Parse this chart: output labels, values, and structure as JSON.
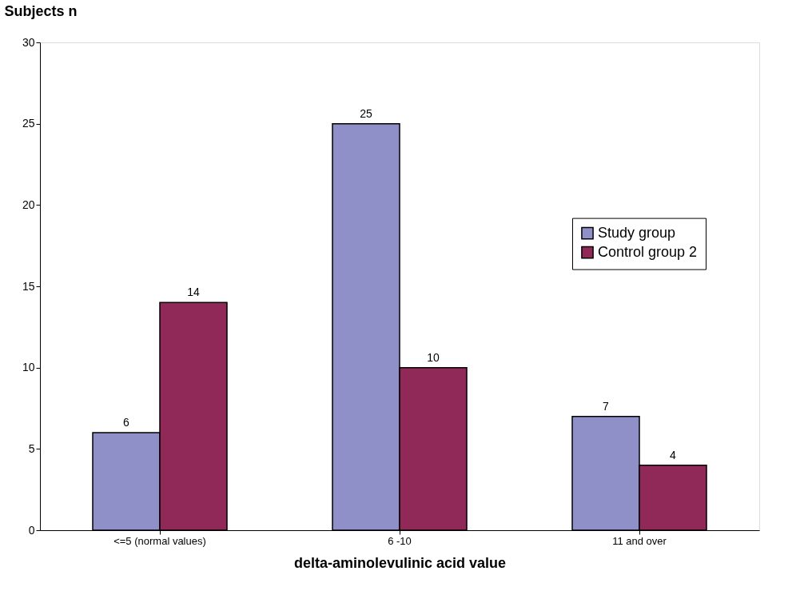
{
  "chart_data": {
    "type": "bar",
    "xlabel": "delta-aminolevulinic acid value",
    "ylabel": "Subjects n",
    "categories": [
      "<=5 (normal values)",
      "6 -10",
      "11 and over"
    ],
    "series": [
      {
        "name": "Study group",
        "color": "#9090c8",
        "values": [
          6,
          25,
          7
        ]
      },
      {
        "name": "Control group 2",
        "color": "#902858",
        "values": [
          14,
          10,
          4
        ]
      }
    ],
    "ylim": [
      0,
      30
    ],
    "yticks": [
      0,
      5,
      10,
      15,
      20,
      25,
      30
    ],
    "grid": false,
    "legend": "right",
    "data_labels": true
  }
}
